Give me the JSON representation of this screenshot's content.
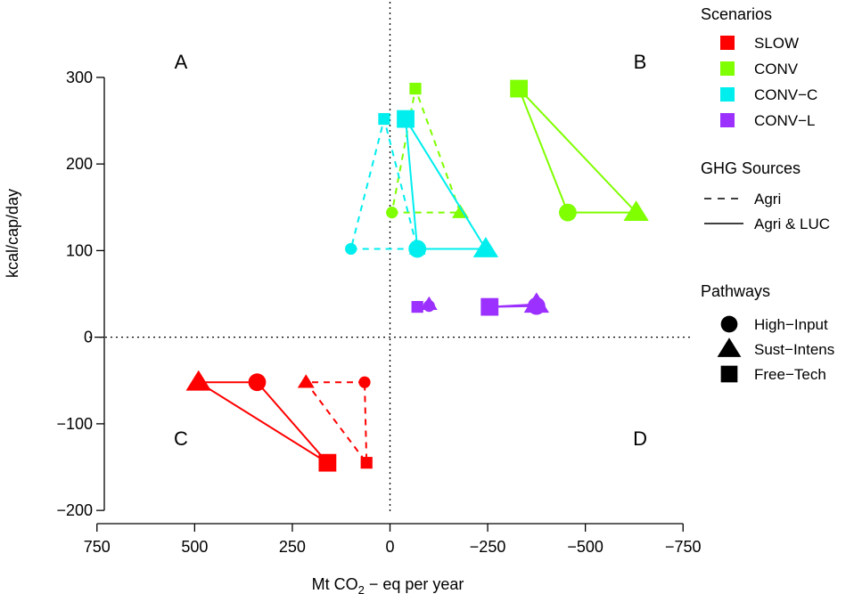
{
  "chart_data": {
    "type": "scatter",
    "xlabel": {
      "prefix": "Mt CO",
      "sub": "2",
      "suffix": " − eq per year"
    },
    "ylabel": "kcal/cap/day",
    "xlim": [
      770,
      -770
    ],
    "ylim": [
      -205,
      340
    ],
    "x_ticks": [
      750,
      500,
      250,
      0,
      -250,
      -500,
      -750
    ],
    "x_tick_labels": [
      "750",
      "500",
      "250",
      "0",
      "−250",
      "−500",
      "−750"
    ],
    "y_ticks": [
      300,
      200,
      100,
      0,
      -100,
      -200
    ],
    "y_tick_labels": [
      "300",
      "200",
      "100",
      "0",
      "−100",
      "−200"
    ],
    "reference_lines": {
      "x": 0,
      "y": 0,
      "style": "dotted"
    },
    "quadrant_labels": [
      {
        "text": "A",
        "x": 535,
        "y": 310
      },
      {
        "text": "B",
        "x": -640,
        "y": 310
      },
      {
        "text": "C",
        "x": 535,
        "y": -125
      },
      {
        "text": "D",
        "x": -640,
        "y": -125
      }
    ],
    "series": [
      {
        "name": "SLOW",
        "color": "#ff0000",
        "ghg": "Agri",
        "points": [
          {
            "pathway": "High-Input",
            "x": 65,
            "y": -52
          },
          {
            "pathway": "Sust-Intens",
            "x": 215,
            "y": -52
          },
          {
            "pathway": "Free-Tech",
            "x": 60,
            "y": -145
          }
        ]
      },
      {
        "name": "SLOW",
        "color": "#ff0000",
        "ghg": "Agri & LUC",
        "points": [
          {
            "pathway": "High-Input",
            "x": 340,
            "y": -52
          },
          {
            "pathway": "Sust-Intens",
            "x": 490,
            "y": -52
          },
          {
            "pathway": "Free-Tech",
            "x": 160,
            "y": -145
          }
        ]
      },
      {
        "name": "CONV",
        "color": "#7fff00",
        "ghg": "Agri",
        "points": [
          {
            "pathway": "High-Input",
            "x": -5,
            "y": 144
          },
          {
            "pathway": "Sust-Intens",
            "x": -180,
            "y": 144
          },
          {
            "pathway": "Free-Tech",
            "x": -65,
            "y": 287
          }
        ]
      },
      {
        "name": "CONV",
        "color": "#7fff00",
        "ghg": "Agri & LUC",
        "points": [
          {
            "pathway": "High-Input",
            "x": -455,
            "y": 144
          },
          {
            "pathway": "Sust-Intens",
            "x": -630,
            "y": 144
          },
          {
            "pathway": "Free-Tech",
            "x": -330,
            "y": 287
          }
        ]
      },
      {
        "name": "CONV−C",
        "color": "#00eeee",
        "ghg": "Agri",
        "points": [
          {
            "pathway": "High-Input",
            "x": 100,
            "y": 102
          },
          {
            "pathway": "Sust-Intens",
            "x": -70,
            "y": 102
          },
          {
            "pathway": "Free-Tech",
            "x": 15,
            "y": 252
          }
        ]
      },
      {
        "name": "CONV−C",
        "color": "#00eeee",
        "ghg": "Agri & LUC",
        "points": [
          {
            "pathway": "High-Input",
            "x": -70,
            "y": 102
          },
          {
            "pathway": "Sust-Intens",
            "x": -245,
            "y": 102
          },
          {
            "pathway": "Free-Tech",
            "x": -40,
            "y": 252
          }
        ]
      },
      {
        "name": "CONV−L",
        "color": "#9b30ff",
        "ghg": "Agri",
        "points": [
          {
            "pathway": "High-Input",
            "x": -100,
            "y": 36
          },
          {
            "pathway": "Sust-Intens",
            "x": -100,
            "y": 38
          },
          {
            "pathway": "Free-Tech",
            "x": -70,
            "y": 35
          }
        ]
      },
      {
        "name": "CONV−L",
        "color": "#9b30ff",
        "ghg": "Agri & LUC",
        "points": [
          {
            "pathway": "High-Input",
            "x": -375,
            "y": 36
          },
          {
            "pathway": "Sust-Intens",
            "x": -375,
            "y": 38
          },
          {
            "pathway": "Free-Tech",
            "x": -255,
            "y": 35
          }
        ]
      }
    ],
    "legend": {
      "placement": "right",
      "scenarios_title": "Scenarios",
      "scenarios": [
        {
          "label": "SLOW",
          "color": "#ff0000"
        },
        {
          "label": "CONV",
          "color": "#7fff00"
        },
        {
          "label": "CONV−C",
          "color": "#00eeee"
        },
        {
          "label": "CONV−L",
          "color": "#9b30ff"
        }
      ],
      "ghg_title": "GHG Sources",
      "ghg": [
        {
          "label": "Agri",
          "style": "dashed"
        },
        {
          "label": "Agri & LUC",
          "style": "solid"
        }
      ],
      "pathways_title": "Pathways",
      "pathways": [
        {
          "label": "High−Input",
          "shape": "circle"
        },
        {
          "label": "Sust−Intens",
          "shape": "triangle"
        },
        {
          "label": "Free−Tech",
          "shape": "square"
        }
      ]
    }
  }
}
